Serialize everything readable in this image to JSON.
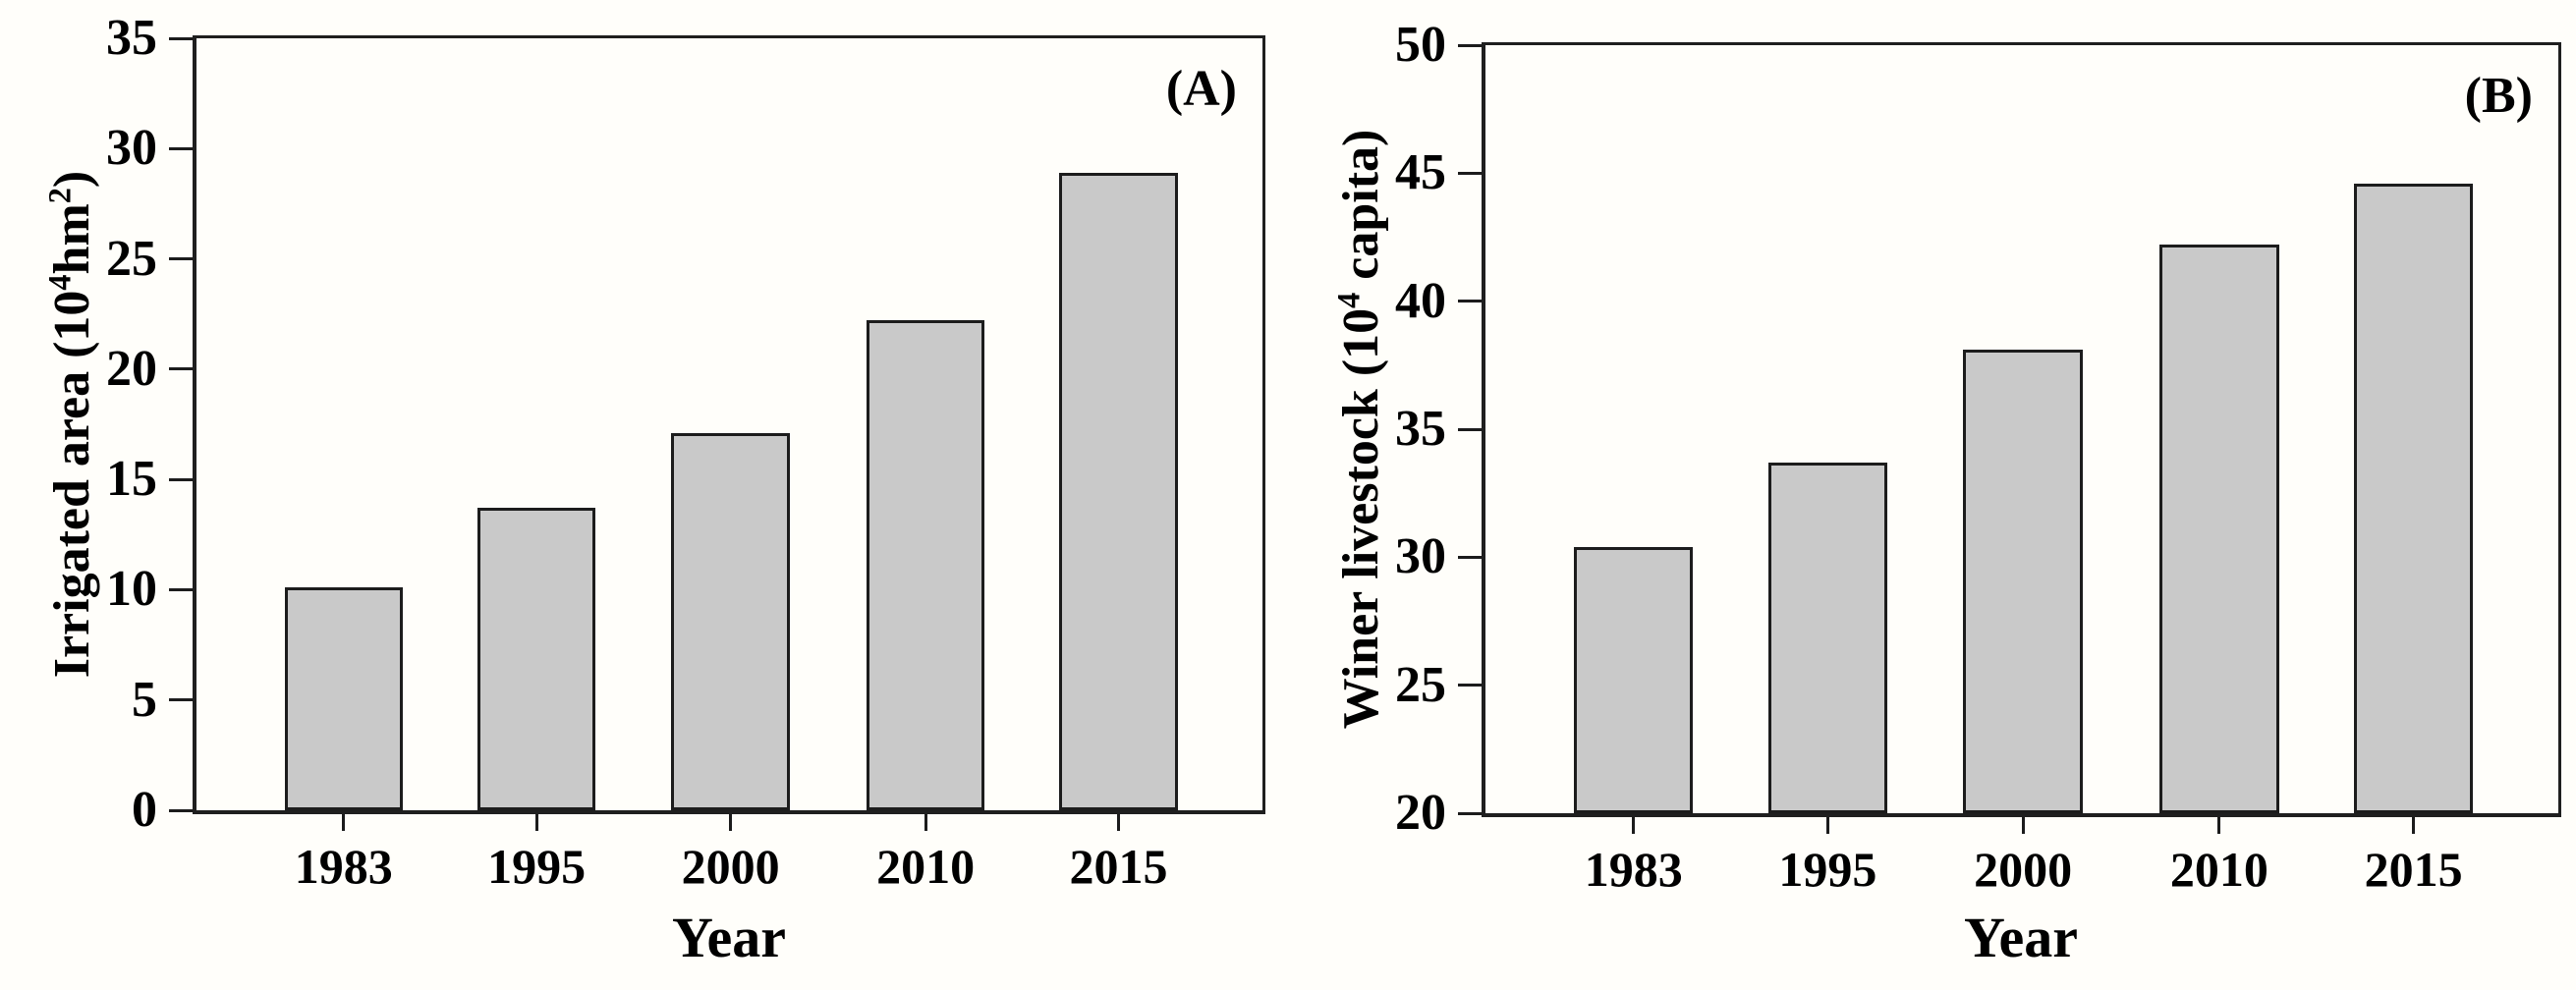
{
  "figure": {
    "background": "#fffefa",
    "bar_fill": "#c9c9c9",
    "bar_border": "#1c1c1c",
    "axis_color": "#1f1f1f",
    "text_color": "#000000"
  },
  "chart_data": [
    {
      "type": "bar",
      "panel_label": "(A)",
      "title": "",
      "xlabel": "Year",
      "ylabel": "Irrigated area (10⁴hm²)",
      "ylabel_parts": [
        {
          "text": "Irrigated area (10"
        },
        {
          "sup": "4"
        },
        {
          "text": "hm"
        },
        {
          "sup": "2"
        },
        {
          "text": ")"
        }
      ],
      "categories": [
        "1983",
        "1995",
        "2000",
        "2010",
        "2015"
      ],
      "values": [
        10.1,
        13.7,
        17.1,
        22.2,
        28.9
      ],
      "ylim": [
        0,
        35
      ],
      "yticks": [
        0,
        5,
        10,
        15,
        20,
        25,
        30,
        35
      ],
      "grid": false,
      "legend": false
    },
    {
      "type": "bar",
      "panel_label": "(B)",
      "title": "",
      "xlabel": "Year",
      "ylabel": "Winer livestock (10⁴ capita)",
      "ylabel_parts": [
        {
          "text": "Winer livestock (10"
        },
        {
          "sup": "4"
        },
        {
          "text": " capita)"
        }
      ],
      "categories": [
        "1983",
        "1995",
        "2000",
        "2010",
        "2015"
      ],
      "values": [
        30.4,
        33.7,
        38.1,
        42.2,
        44.6
      ],
      "ylim": [
        20,
        50
      ],
      "yticks": [
        20,
        25,
        30,
        35,
        40,
        45,
        50
      ],
      "grid": false,
      "legend": false
    }
  ]
}
